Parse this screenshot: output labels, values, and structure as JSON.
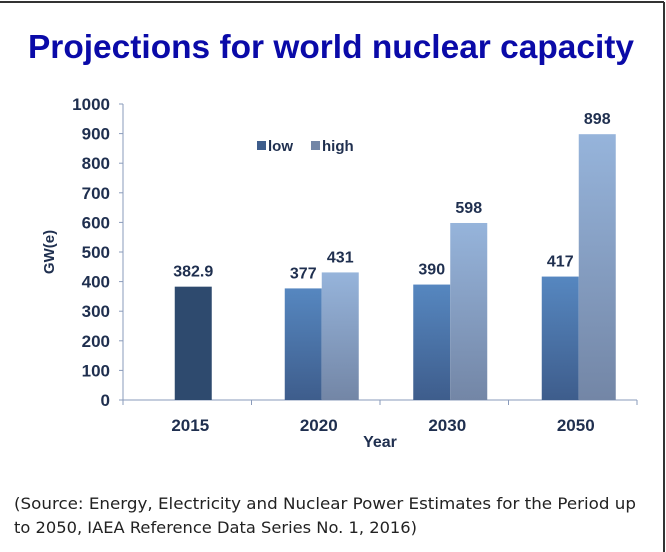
{
  "title": "Projections for world nuclear capacity",
  "source_lines": [
    "(Source: Energy, Electricity and Nuclear Power Estimates for the Period up",
    "to 2050, IAEA Reference Data Series No. 1, 2016)"
  ],
  "colors": {
    "title": "#0a0aa8",
    "text": "#1f2f4f",
    "axis": "#8a9bbb",
    "base_2015": "#2e4a6e",
    "low_top": "#5687c0",
    "low_bottom": "#3e5d8c",
    "high_top": "#96b4db",
    "high_bottom": "#7386a6"
  },
  "chart_data": {
    "type": "bar",
    "title": "Projections for world nuclear capacity",
    "xlabel": "Year",
    "ylabel": "GW(e)",
    "ylim": [
      0,
      1000
    ],
    "yticks": [
      0,
      100,
      200,
      300,
      400,
      500,
      600,
      700,
      800,
      900,
      1000
    ],
    "categories": [
      "2015",
      "2020",
      "2030",
      "2050"
    ],
    "base": {
      "category": "2015",
      "value": 382.9,
      "label": "382.9"
    },
    "series": [
      {
        "name": "low",
        "values": [
          null,
          377,
          390,
          417
        ]
      },
      {
        "name": "high",
        "values": [
          null,
          431,
          598,
          898
        ]
      }
    ],
    "legend": {
      "position": "top-center",
      "entries": [
        "low",
        "high"
      ]
    },
    "grid": false
  }
}
